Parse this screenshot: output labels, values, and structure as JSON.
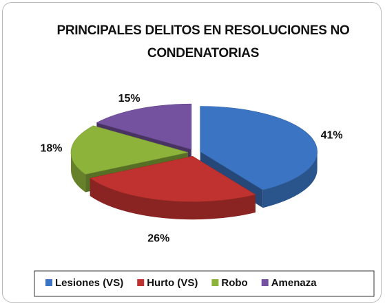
{
  "chart_data": {
    "type": "pie3d",
    "title": "PRINCIPALES DELITOS EN RESOLUCIONES NO CONDENATORIAS",
    "categories": [
      "Lesiones (VS)",
      "Hurto (VS)",
      "Robo",
      "Amenaza"
    ],
    "values": [
      41,
      26,
      18,
      15
    ],
    "value_labels": [
      "41%",
      "26%",
      "18%",
      "15%"
    ],
    "colors": [
      "#3b74c2",
      "#c0322f",
      "#8db33b",
      "#7452a0"
    ],
    "legend": "bottom"
  }
}
